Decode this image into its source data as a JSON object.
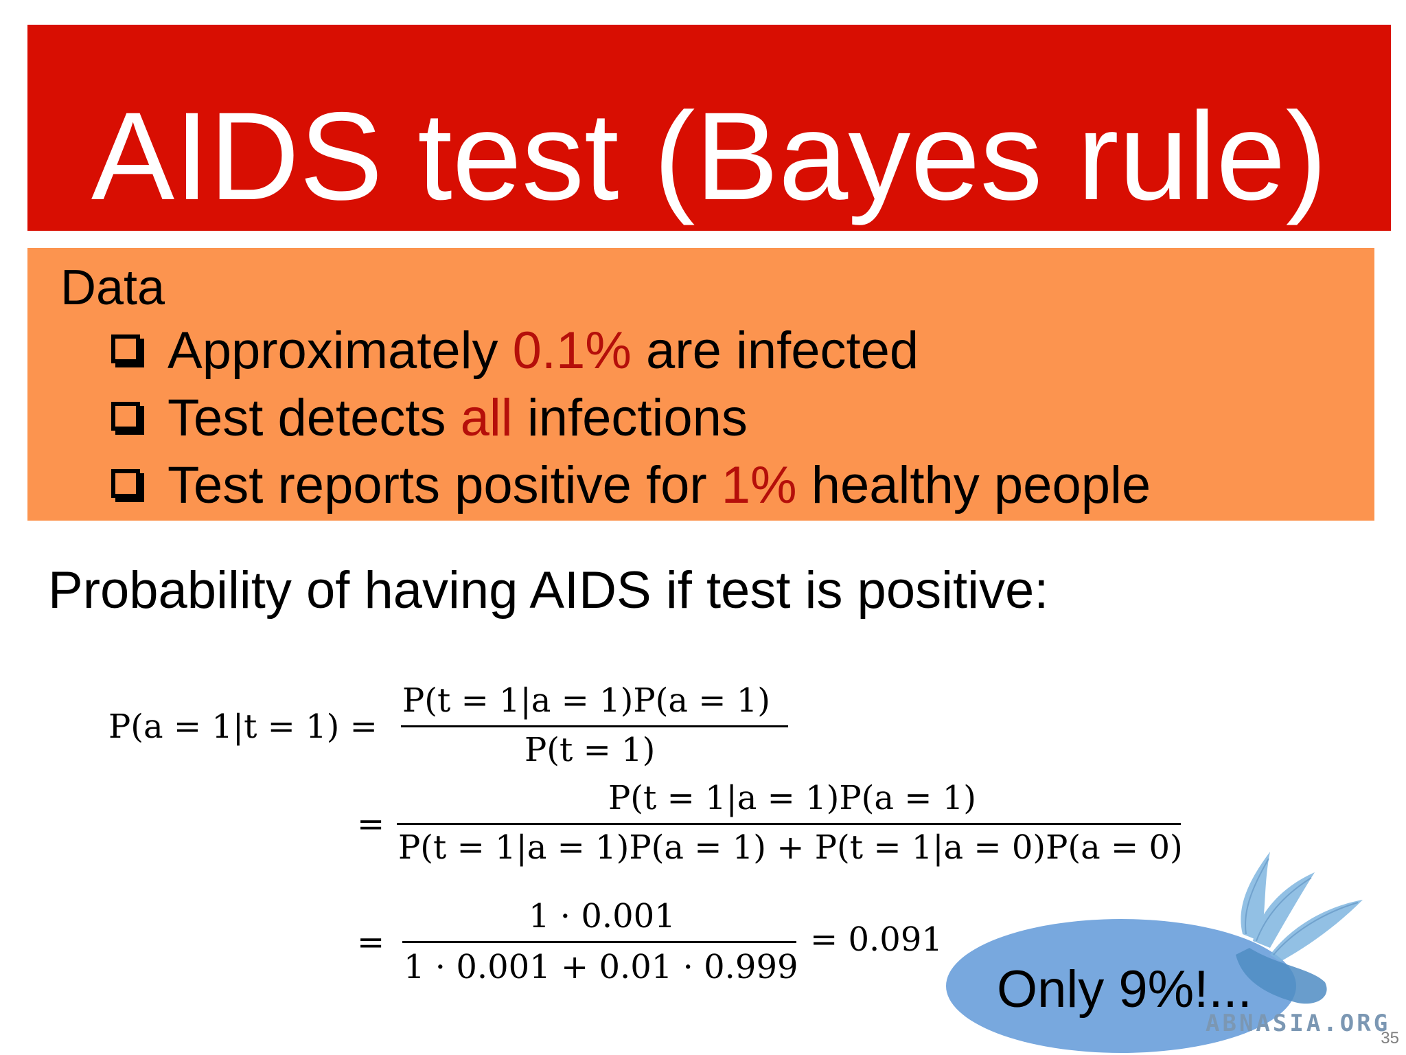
{
  "slide": {
    "title": "AIDS test (Bayes rule)",
    "data_heading": "Data",
    "bullets": [
      {
        "before": "Approximately ",
        "highlight": "0.1%",
        "after": " are infected"
      },
      {
        "before": "Test detects ",
        "highlight": "all",
        "after": " infections"
      },
      {
        "before": "Test reports positive for ",
        "highlight": "1%",
        "after": " healthy people"
      }
    ],
    "question": "Probability of having AIDS if test is positive:",
    "equations": {
      "lhs": "P(a = 1|t = 1) =",
      "frac1_num": "P(t = 1|a = 1)P(a = 1)",
      "frac1_den": "P(t = 1)",
      "eq2": "=",
      "frac2_num": "P(t = 1|a = 1)P(a = 1)",
      "frac2_den": "P(t = 1|a = 1)P(a = 1) + P(t = 1|a = 0)P(a = 0)",
      "eq3": "=",
      "frac3_num": "1 · 0.001",
      "frac3_den": "1 · 0.001 + 0.01 · 0.999",
      "result": "= 0.091"
    },
    "callout": "Only 9%!...",
    "watermark": "ABNASIA.ORG",
    "page_number": "35"
  },
  "colors": {
    "title_bg": "#d80e02",
    "data_bg": "#fc944f",
    "highlight": "#b50f0a",
    "bubble": "#78a8de"
  }
}
